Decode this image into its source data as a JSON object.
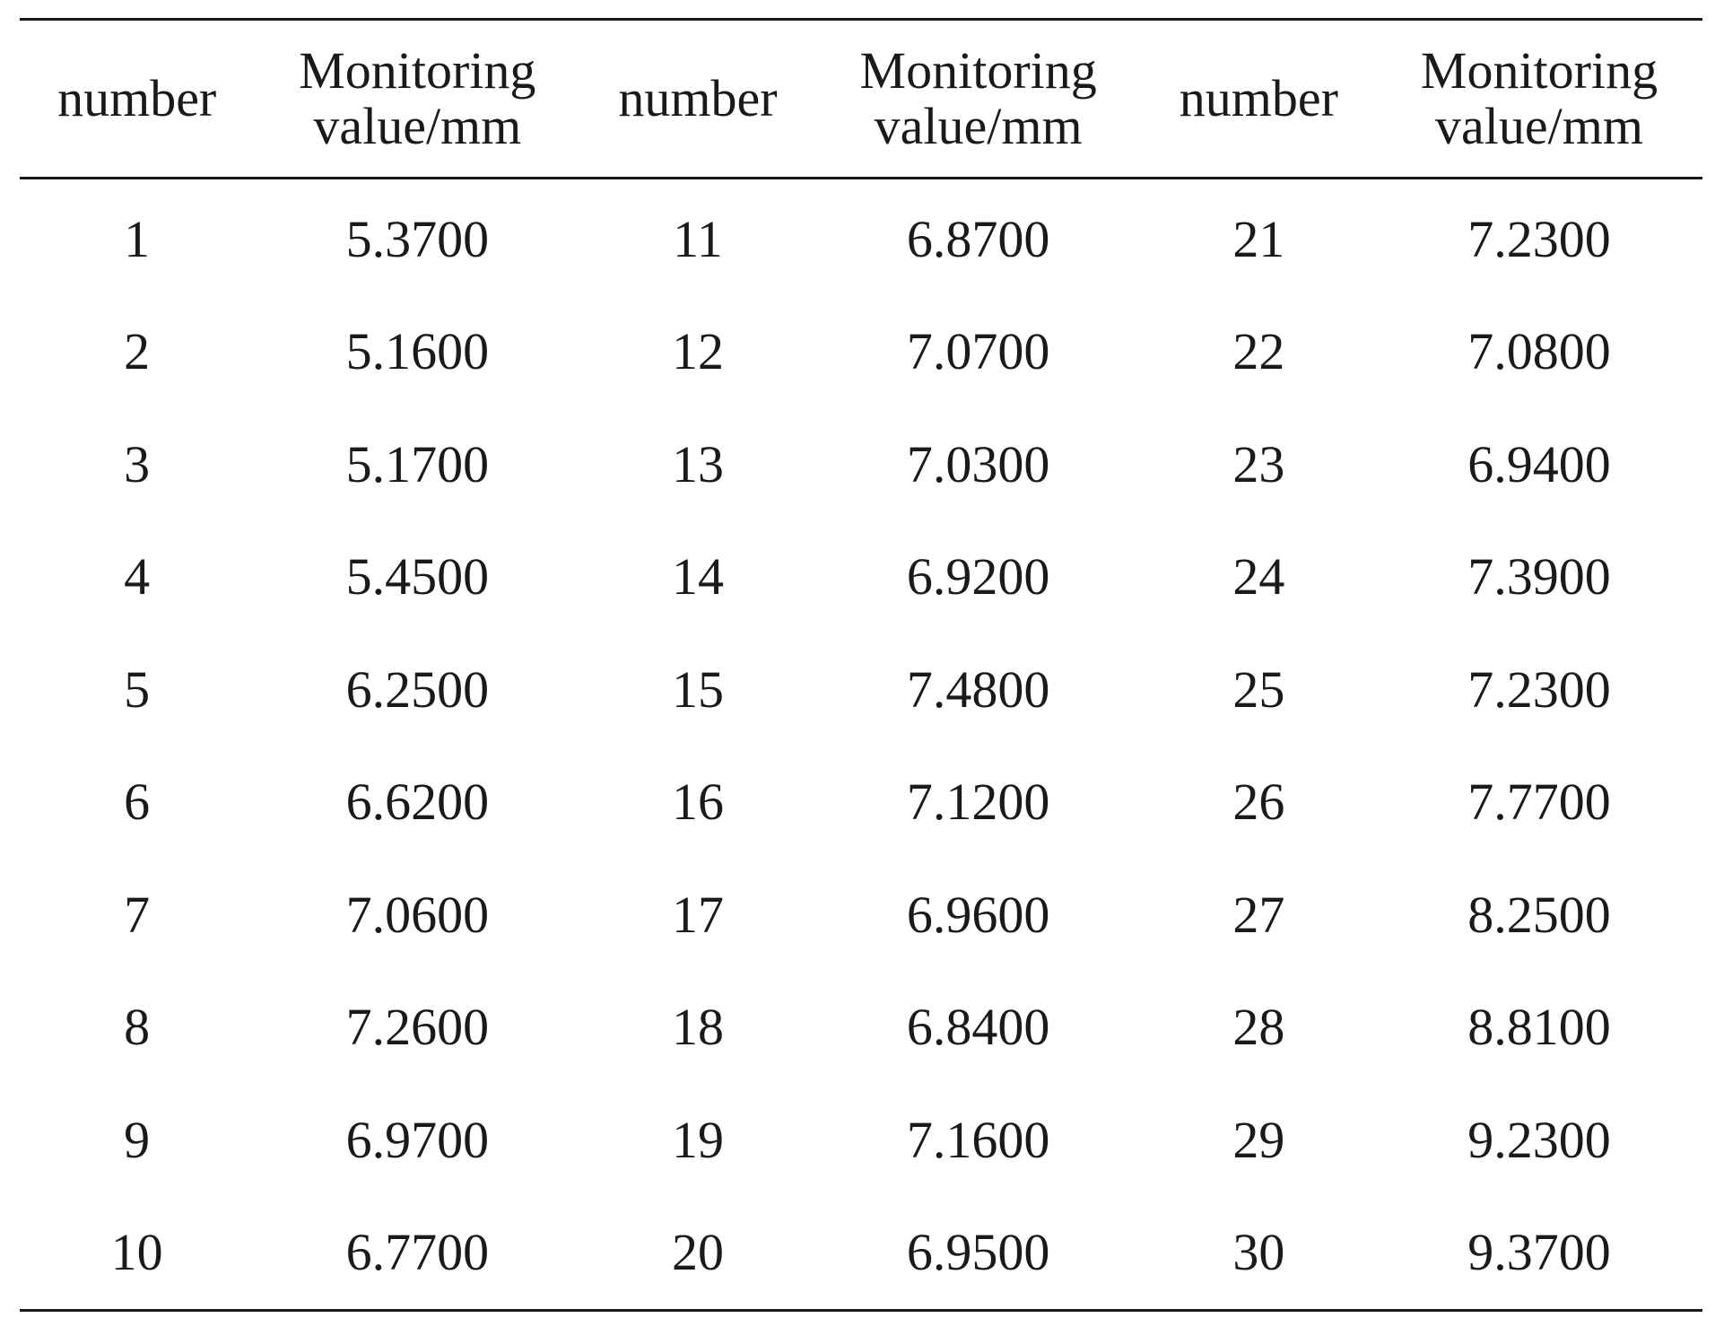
{
  "table": {
    "headers": [
      {
        "line1": "number",
        "line2": ""
      },
      {
        "line1": "Monitoring",
        "line2": "value/mm"
      },
      {
        "line1": "number",
        "line2": ""
      },
      {
        "line1": "Monitoring",
        "line2": "value/mm"
      },
      {
        "line1": "number",
        "line2": ""
      },
      {
        "line1": "Monitoring",
        "line2": "value/mm"
      }
    ],
    "rows": [
      [
        "1",
        "5.3700",
        "11",
        "6.8700",
        "21",
        "7.2300"
      ],
      [
        "2",
        "5.1600",
        "12",
        "7.0700",
        "22",
        "7.0800"
      ],
      [
        "3",
        "5.1700",
        "13",
        "7.0300",
        "23",
        "6.9400"
      ],
      [
        "4",
        "5.4500",
        "14",
        "6.9200",
        "24",
        "7.3900"
      ],
      [
        "5",
        "6.2500",
        "15",
        "7.4800",
        "25",
        "7.2300"
      ],
      [
        "6",
        "6.6200",
        "16",
        "7.1200",
        "26",
        "7.7700"
      ],
      [
        "7",
        "7.0600",
        "17",
        "6.9600",
        "27",
        "8.2500"
      ],
      [
        "8",
        "7.2600",
        "18",
        "6.8400",
        "28",
        "8.8100"
      ],
      [
        "9",
        "6.9700",
        "19",
        "7.1600",
        "29",
        "9.2300"
      ],
      [
        "10",
        "6.7700",
        "20",
        "6.9500",
        "30",
        "9.3700"
      ]
    ]
  }
}
